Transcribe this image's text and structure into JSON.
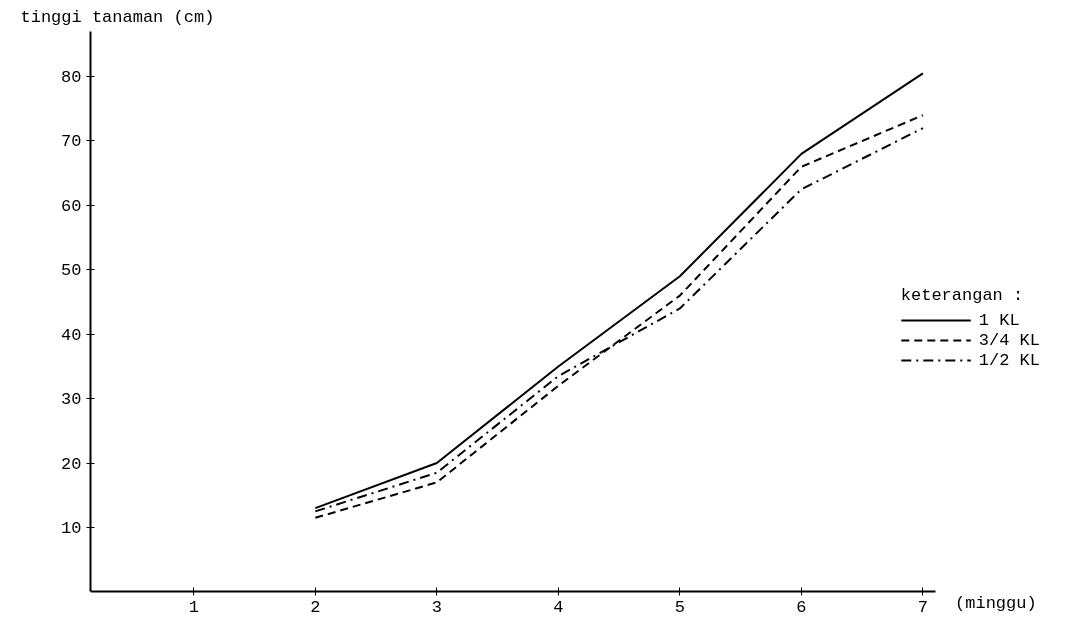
{
  "chart_data": {
    "type": "line",
    "ylabel": "tinggi tanaman (cm)",
    "xlabel": "(minggu)",
    "legend_title": "keterangan :",
    "x": [
      2,
      3,
      4,
      5,
      6,
      7
    ],
    "series": [
      {
        "name": "1 KL",
        "color": "#000000",
        "line_style": "solid",
        "values": [
          13,
          20,
          35,
          49,
          68,
          80.5
        ]
      },
      {
        "name": "3/4 KL",
        "color": "#000000",
        "line_style": "dashed",
        "values": [
          11.5,
          17,
          32,
          46,
          66,
          74
        ]
      },
      {
        "name": "1/2 KL",
        "color": "#000000",
        "line_style": "dashdot",
        "values": [
          12.5,
          18.5,
          33.5,
          44,
          62.5,
          72
        ]
      }
    ],
    "xlim": [
      0.15,
      7.1
    ],
    "ylim": [
      0,
      87
    ],
    "xticks": [
      1,
      2,
      3,
      4,
      5,
      6,
      7
    ],
    "yticks": [
      10,
      20,
      30,
      40,
      50,
      60,
      70,
      80
    ],
    "grid": false,
    "legend": "right",
    "marker": "none"
  }
}
